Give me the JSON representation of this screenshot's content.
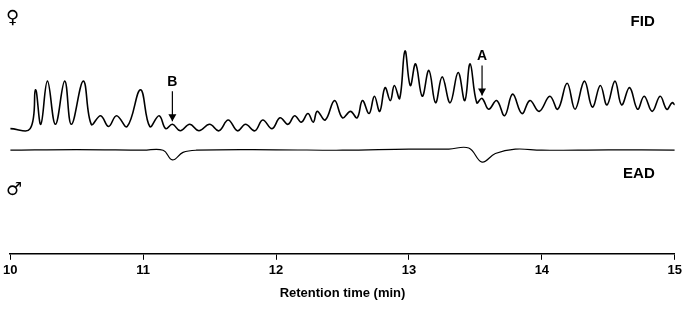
{
  "chart_data": {
    "type": "line",
    "x_label": "Retention time (min)",
    "xlim": [
      10,
      15
    ],
    "xticks": [
      10,
      11,
      12,
      13,
      14,
      15
    ],
    "ylim": [
      0,
      100
    ],
    "tick_labels": "x",
    "grid": false,
    "series": [
      {
        "name": "FID",
        "sex": "♀",
        "color": "#000000",
        "x": [
          10.0,
          10.15,
          10.19,
          10.23,
          10.28,
          10.34,
          10.41,
          10.46,
          10.55,
          10.61,
          10.68,
          10.74,
          10.8,
          10.88,
          10.98,
          11.05,
          11.12,
          11.17,
          11.22,
          11.28,
          11.35,
          11.42,
          11.5,
          11.57,
          11.64,
          11.71,
          11.77,
          11.84,
          11.9,
          11.97,
          12.03,
          12.09,
          12.14,
          12.19,
          12.24,
          12.28,
          12.31,
          12.37,
          12.44,
          12.5,
          12.56,
          12.61,
          12.65,
          12.7,
          12.74,
          12.78,
          12.82,
          12.86,
          12.89,
          12.93,
          12.97,
          13.01,
          13.05,
          13.1,
          13.15,
          13.2,
          13.25,
          13.31,
          13.37,
          13.42,
          13.46,
          13.51,
          13.55,
          13.6,
          13.66,
          13.72,
          13.78,
          13.85,
          13.91,
          13.98,
          14.06,
          14.12,
          14.19,
          14.25,
          14.32,
          14.38,
          14.44,
          14.49,
          14.55,
          14.6,
          14.66,
          14.72,
          14.77,
          14.83,
          14.89,
          14.94,
          14.98,
          15.0
        ],
        "values": [
          58,
          58,
          76,
          60,
          80,
          60,
          80,
          60,
          80,
          60,
          64,
          59,
          64,
          59,
          76,
          59,
          64,
          58,
          60,
          57,
          60,
          57,
          60,
          57,
          62,
          57,
          60,
          57,
          62,
          58,
          63,
          60,
          64,
          61,
          65,
          61,
          66,
          62,
          71,
          63,
          66,
          63,
          71,
          65,
          73,
          66,
          77,
          71,
          78,
          72,
          94,
          78,
          88,
          73,
          85,
          70,
          82,
          70,
          84,
          71,
          88,
          70,
          72,
          67,
          71,
          64,
          74,
          65,
          71,
          66,
          73,
          67,
          79,
          67,
          80,
          68,
          78,
          69,
          80,
          69,
          77,
          67,
          73,
          66,
          73,
          67,
          70,
          69
        ]
      },
      {
        "name": "EAD",
        "sex": "♂",
        "color": "#000000",
        "x": [
          10.0,
          10.5,
          11.0,
          11.15,
          11.22,
          11.3,
          11.4,
          12.0,
          12.5,
          13.0,
          13.3,
          13.45,
          13.55,
          13.65,
          13.8,
          14.0,
          14.5,
          15.0
        ],
        "values": [
          48,
          48.3,
          48,
          48,
          43.5,
          47,
          48,
          48.2,
          48,
          48.5,
          48.5,
          49,
          42.5,
          46.5,
          48.5,
          48,
          48.2,
          48
        ]
      }
    ],
    "annotations": [
      {
        "text": "A",
        "x": 13.55,
        "y": 72
      },
      {
        "text": "B",
        "x": 11.22,
        "y": 60
      }
    ]
  }
}
